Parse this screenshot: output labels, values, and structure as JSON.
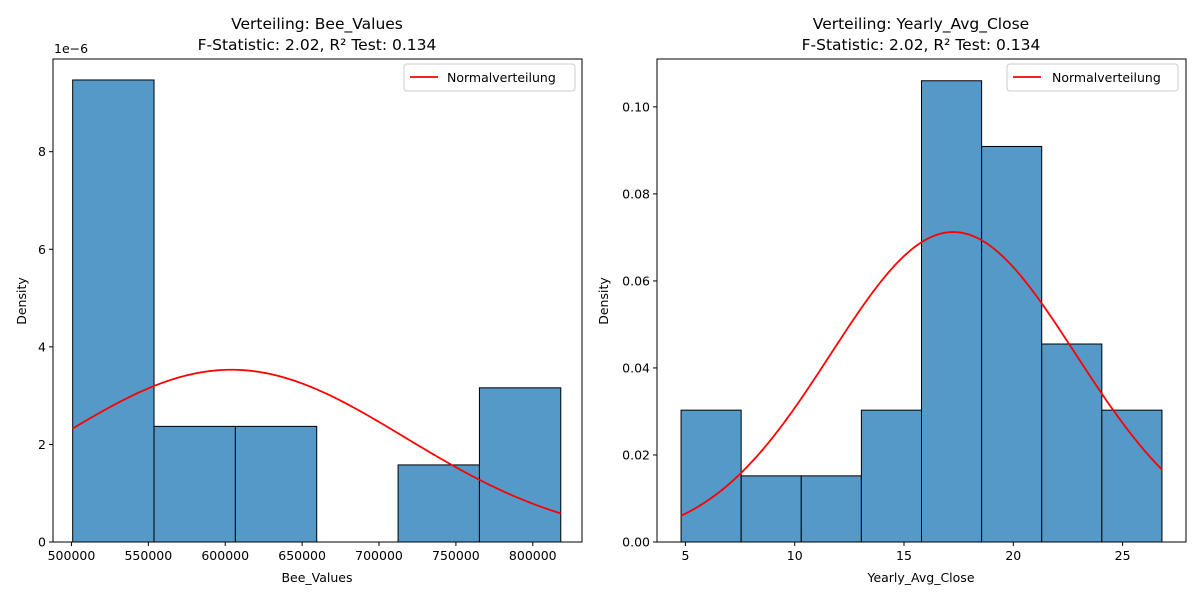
{
  "chart_data": [
    {
      "type": "histogram",
      "title": "Verteiling: Bee_Values",
      "subtitle": "F-Statistic: 2.02, R² Test: 0.134",
      "xlabel": "Bee_Values",
      "ylabel": "Density",
      "y_multiplier": "1e−6",
      "xlim": [
        488000,
        832000
      ],
      "ylim": [
        0,
        9.9
      ],
      "x_ticks": [
        500000,
        550000,
        600000,
        650000,
        700000,
        750000,
        800000
      ],
      "x_tick_labels": [
        "500000",
        "550000",
        "600000",
        "650000",
        "700000",
        "750000",
        "800000"
      ],
      "y_ticks": [
        0,
        2,
        4,
        6,
        8
      ],
      "y_tick_labels": [
        "0",
        "2",
        "4",
        "6",
        "8"
      ],
      "bins": [
        {
          "x0": 500800,
          "x1": 553700,
          "density": 9.47
        },
        {
          "x0": 553700,
          "x1": 606600,
          "density": 2.37
        },
        {
          "x0": 606600,
          "x1": 659500,
          "density": 2.37
        },
        {
          "x0": 659500,
          "x1": 712400,
          "density": 0
        },
        {
          "x0": 712400,
          "x1": 765300,
          "density": 1.58
        },
        {
          "x0": 765300,
          "x1": 818200,
          "density": 3.16
        }
      ],
      "normal_curve": {
        "name": "Normalverteilung",
        "mean": 604000,
        "sd": 113000,
        "x_range": [
          500800,
          818200
        ],
        "color": "#ff0000"
      },
      "bar_color": "#5499c7",
      "legend": {
        "position": "top-right",
        "entries": [
          "Normalverteilung"
        ]
      },
      "grid": false
    },
    {
      "type": "histogram",
      "title": "Verteiling: Yearly_Avg_Close",
      "subtitle": "F-Statistic: 2.02, R² Test: 0.134",
      "xlabel": "Yearly_Avg_Close",
      "ylabel": "Density",
      "xlim": [
        3.7,
        27.9
      ],
      "ylim": [
        0,
        0.111
      ],
      "x_ticks": [
        5,
        10,
        15,
        20,
        25
      ],
      "x_tick_labels": [
        "5",
        "10",
        "15",
        "20",
        "25"
      ],
      "y_ticks": [
        0,
        0.02,
        0.04,
        0.06,
        0.08,
        0.1
      ],
      "y_tick_labels": [
        "0.00",
        "0.02",
        "0.04",
        "0.06",
        "0.08",
        "0.10"
      ],
      "bins": [
        {
          "x0": 4.8,
          "x1": 7.55,
          "density": 0.0303
        },
        {
          "x0": 7.55,
          "x1": 10.3,
          "density": 0.0152
        },
        {
          "x0": 10.3,
          "x1": 13.05,
          "density": 0.0152
        },
        {
          "x0": 13.05,
          "x1": 15.8,
          "density": 0.0303
        },
        {
          "x0": 15.8,
          "x1": 18.55,
          "density": 0.106
        },
        {
          "x0": 18.55,
          "x1": 21.3,
          "density": 0.0909
        },
        {
          "x0": 21.3,
          "x1": 24.05,
          "density": 0.0455
        },
        {
          "x0": 24.05,
          "x1": 26.8,
          "density": 0.0303
        }
      ],
      "normal_curve": {
        "name": "Normalverteilung",
        "mean": 17.25,
        "sd": 5.6,
        "x_range": [
          4.8,
          26.8
        ],
        "color": "#ff0000"
      },
      "bar_color": "#5499c7",
      "legend": {
        "position": "top-right",
        "entries": [
          "Normalverteilung"
        ]
      },
      "grid": false
    }
  ]
}
